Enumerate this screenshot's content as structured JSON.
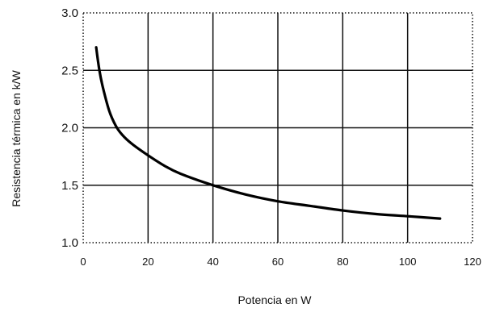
{
  "chart_data": {
    "type": "line",
    "xlabel": "Potencia en W",
    "ylabel": "Resistencia térmica en k/W",
    "xlim": [
      0,
      120
    ],
    "ylim": [
      1.0,
      3.0
    ],
    "x_ticks": [
      "0",
      "20",
      "40",
      "60",
      "80",
      "100",
      "120"
    ],
    "y_ticks": [
      "1.0",
      "1.5",
      "2.0",
      "2.5",
      "3.0"
    ],
    "grid": true,
    "series": [
      {
        "x": [
          4,
          5,
          6,
          8,
          10,
          12,
          15,
          20,
          25,
          30,
          40,
          50,
          60,
          70,
          80,
          90,
          100,
          110
        ],
        "y": [
          2.7,
          2.5,
          2.36,
          2.15,
          2.02,
          1.94,
          1.86,
          1.76,
          1.67,
          1.6,
          1.5,
          1.42,
          1.36,
          1.32,
          1.28,
          1.25,
          1.23,
          1.21
        ]
      }
    ]
  }
}
